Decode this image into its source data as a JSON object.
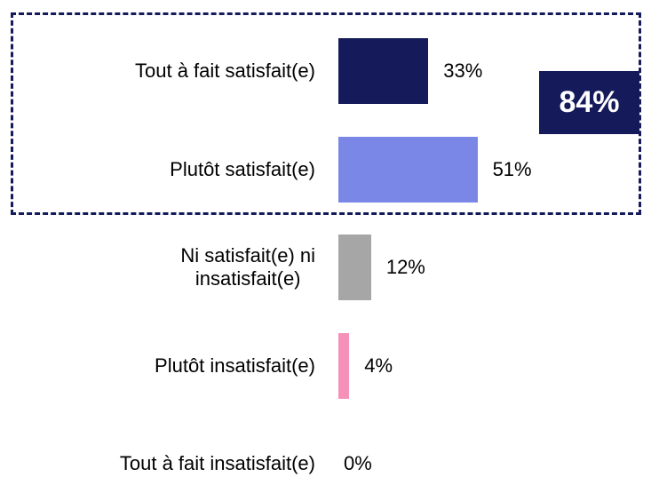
{
  "chart_data": {
    "type": "bar",
    "orientation": "horizontal",
    "categories": [
      "Tout à fait satisfait(e)",
      "Plutôt satisfait(e)",
      "Ni satisfait(e) ni\ninsatisfait(e)",
      "Plutôt insatisfait(e)",
      "Tout à fait insatisfait(e)"
    ],
    "values": [
      33,
      51,
      12,
      4,
      0
    ],
    "value_labels": [
      "33%",
      "51%",
      "12%",
      "4%",
      "0%"
    ],
    "colors": [
      "#141a5a",
      "#7b87e6",
      "#a6a6a6",
      "#f590b8",
      "#8a8a8a"
    ],
    "annotation": "84%"
  }
}
